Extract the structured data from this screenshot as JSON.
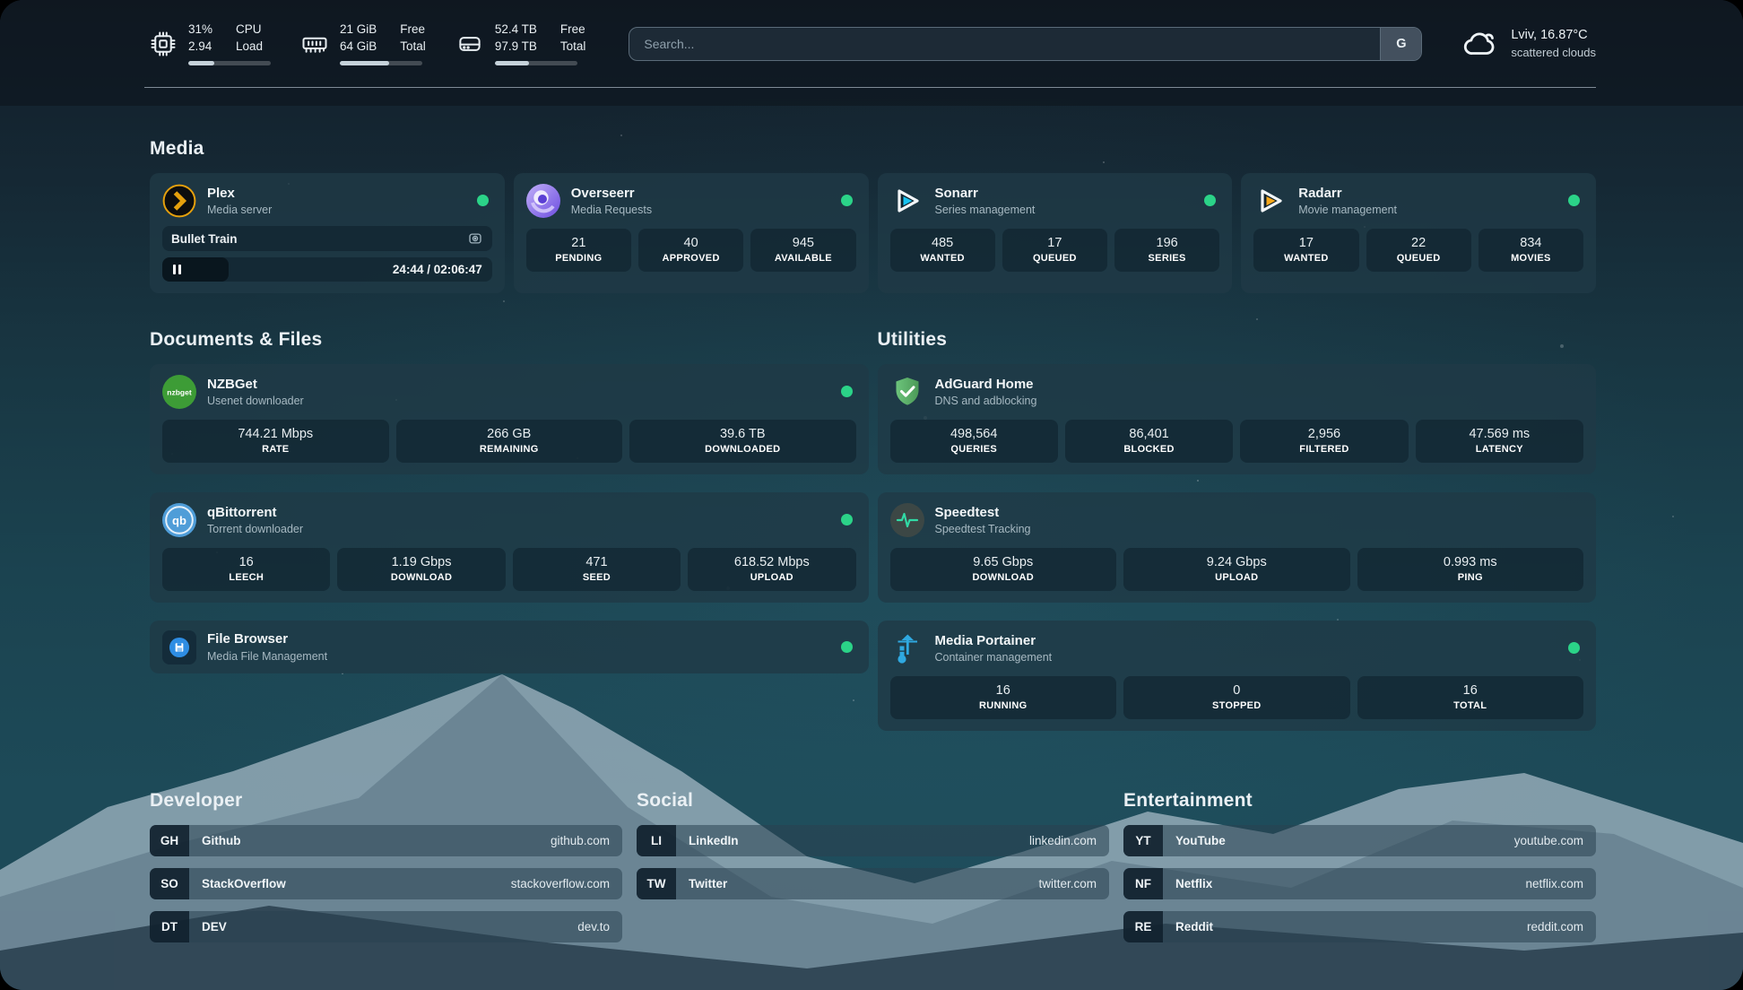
{
  "header": {
    "metrics": [
      {
        "icon": "cpu-icon",
        "values": [
          "31%",
          "2.94"
        ],
        "labels": [
          "CPU",
          "Load"
        ],
        "progress": 31
      },
      {
        "icon": "memory-icon",
        "values": [
          "21 GiB",
          "64 GiB"
        ],
        "labels": [
          "Free",
          "Total"
        ],
        "progress": 60
      },
      {
        "icon": "disk-icon",
        "values": [
          "52.4 TB",
          "97.9 TB"
        ],
        "labels": [
          "Free",
          "Total"
        ],
        "progress": 42
      }
    ],
    "search": {
      "placeholder": "Search...",
      "engine_button": "G"
    },
    "weather": {
      "location": "Lviv, 16.87°C",
      "condition": "scattered clouds",
      "icon": "cloud-icon"
    }
  },
  "sections": {
    "media": {
      "title": "Media",
      "apps": [
        {
          "name": "Plex",
          "subtitle": "Media server",
          "status": "online",
          "now_playing": {
            "title": "Bullet Train",
            "time": "24:44 / 02:06:47",
            "progress": 20
          }
        },
        {
          "name": "Overseerr",
          "subtitle": "Media Requests",
          "status": "online",
          "stats": [
            {
              "value": "21",
              "label": "PENDING"
            },
            {
              "value": "40",
              "label": "APPROVED"
            },
            {
              "value": "945",
              "label": "AVAILABLE"
            }
          ]
        },
        {
          "name": "Sonarr",
          "subtitle": "Series management",
          "status": "online",
          "stats": [
            {
              "value": "485",
              "label": "WANTED"
            },
            {
              "value": "17",
              "label": "QUEUED"
            },
            {
              "value": "196",
              "label": "SERIES"
            }
          ]
        },
        {
          "name": "Radarr",
          "subtitle": "Movie management",
          "status": "online",
          "stats": [
            {
              "value": "17",
              "label": "WANTED"
            },
            {
              "value": "22",
              "label": "QUEUED"
            },
            {
              "value": "834",
              "label": "MOVIES"
            }
          ]
        }
      ]
    },
    "documents": {
      "title": "Documents & Files",
      "apps": [
        {
          "name": "NZBGet",
          "subtitle": "Usenet downloader",
          "status": "online",
          "icon_text": "nzbget",
          "stats": [
            {
              "value": "744.21 Mbps",
              "label": "RATE"
            },
            {
              "value": "266 GB",
              "label": "REMAINING"
            },
            {
              "value": "39.6 TB",
              "label": "DOWNLOADED"
            }
          ]
        },
        {
          "name": "qBittorrent",
          "subtitle": "Torrent downloader",
          "status": "online",
          "icon_text": "qb",
          "stats": [
            {
              "value": "16",
              "label": "LEECH"
            },
            {
              "value": "1.19 Gbps",
              "label": "DOWNLOAD"
            },
            {
              "value": "471",
              "label": "SEED"
            },
            {
              "value": "618.52 Mbps",
              "label": "UPLOAD"
            }
          ]
        },
        {
          "name": "File Browser",
          "subtitle": "Media File Management",
          "status": "online",
          "stats": []
        }
      ]
    },
    "utilities": {
      "title": "Utilities",
      "apps": [
        {
          "name": "AdGuard Home",
          "subtitle": "DNS and adblocking",
          "stats": [
            {
              "value": "498,564",
              "label": "QUERIES"
            },
            {
              "value": "86,401",
              "label": "BLOCKED"
            },
            {
              "value": "2,956",
              "label": "FILTERED"
            },
            {
              "value": "47.569 ms",
              "label": "LATENCY"
            }
          ]
        },
        {
          "name": "Speedtest",
          "subtitle": "Speedtest Tracking",
          "stats": [
            {
              "value": "9.65 Gbps",
              "label": "DOWNLOAD"
            },
            {
              "value": "9.24 Gbps",
              "label": "UPLOAD"
            },
            {
              "value": "0.993 ms",
              "label": "PING"
            }
          ]
        },
        {
          "name": "Media Portainer",
          "subtitle": "Container management",
          "status": "online",
          "stats": [
            {
              "value": "16",
              "label": "RUNNING"
            },
            {
              "value": "0",
              "label": "STOPPED"
            },
            {
              "value": "16",
              "label": "TOTAL"
            }
          ]
        }
      ]
    },
    "links": [
      {
        "title": "Developer",
        "items": [
          {
            "abbr": "GH",
            "name": "Github",
            "url": "github.com"
          },
          {
            "abbr": "SO",
            "name": "StackOverflow",
            "url": "stackoverflow.com"
          },
          {
            "abbr": "DT",
            "name": "DEV",
            "url": "dev.to"
          }
        ]
      },
      {
        "title": "Social",
        "items": [
          {
            "abbr": "LI",
            "name": "LinkedIn",
            "url": "linkedin.com"
          },
          {
            "abbr": "TW",
            "name": "Twitter",
            "url": "twitter.com"
          }
        ]
      },
      {
        "title": "Entertainment",
        "items": [
          {
            "abbr": "YT",
            "name": "YouTube",
            "url": "youtube.com"
          },
          {
            "abbr": "NF",
            "name": "Netflix",
            "url": "netflix.com"
          },
          {
            "abbr": "RE",
            "name": "Reddit",
            "url": "reddit.com"
          }
        ]
      }
    ]
  },
  "colors": {
    "status_online": "#2bd388",
    "plex_accent": "#e5a00d",
    "sonarr_accent": "#19c3f0",
    "radarr_accent": "#f7a81b",
    "nzbget_accent": "#3d9c36",
    "qbittorrent_accent": "#4f9dd8",
    "filebrowser_accent": "#2e8de3",
    "adguard_accent": "#5fb46a",
    "speedtest_accent": "#31d9a5",
    "portainer_accent": "#2fa9e1"
  }
}
